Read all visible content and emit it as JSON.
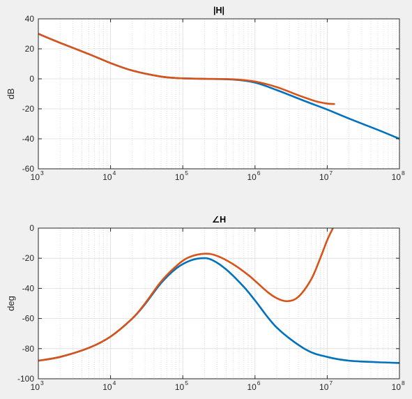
{
  "chart_data": [
    {
      "type": "line",
      "title": "|H|",
      "xlabel": "",
      "ylabel": "dB",
      "xscale": "log",
      "xlim": [
        1000,
        100000000
      ],
      "ylim": [
        -60,
        40
      ],
      "xticks": [
        1000,
        10000,
        100000,
        1000000,
        10000000,
        100000000
      ],
      "xtick_labels": [
        {
          "base": "10",
          "exp": "3"
        },
        {
          "base": "10",
          "exp": "4"
        },
        {
          "base": "10",
          "exp": "5"
        },
        {
          "base": "10",
          "exp": "6"
        },
        {
          "base": "10",
          "exp": "7"
        },
        {
          "base": "10",
          "exp": "8"
        }
      ],
      "yticks": [
        -60,
        -40,
        -20,
        0,
        20,
        40
      ],
      "ytick_labels": [
        "-60",
        "-40",
        "-20",
        "0",
        "20",
        "40"
      ],
      "grid": "major and minor",
      "series": [
        {
          "color": "#0072bd",
          "x": [
            1000,
            2000,
            5000,
            10000,
            20000,
            50000,
            100000,
            200000,
            500000,
            1000000,
            2000000,
            5000000,
            10000000,
            20000000,
            50000000,
            100000000
          ],
          "y": [
            30,
            24,
            16.5,
            10.5,
            5.5,
            1.5,
            0.3,
            0,
            -0.5,
            -2.5,
            -7.5,
            -15,
            -20.5,
            -26.5,
            -34,
            -40
          ]
        },
        {
          "color": "#d95319",
          "x": [
            1000,
            2000,
            5000,
            10000,
            20000,
            50000,
            100000,
            200000,
            500000,
            1000000,
            2000000,
            4000000,
            7000000,
            10000000,
            12500000
          ],
          "y": [
            30,
            24,
            16.5,
            10.5,
            5.5,
            1.5,
            0.3,
            0,
            -0.3,
            -1.8,
            -5.5,
            -11,
            -15,
            -16.5,
            -16.8
          ]
        }
      ]
    },
    {
      "type": "line",
      "title": "∠H",
      "xlabel": "",
      "ylabel": "deg",
      "xscale": "log",
      "xlim": [
        1000,
        100000000
      ],
      "ylim": [
        -100,
        0
      ],
      "xticks": [
        1000,
        10000,
        100000,
        1000000,
        10000000,
        100000000
      ],
      "xtick_labels": [
        {
          "base": "10",
          "exp": "3"
        },
        {
          "base": "10",
          "exp": "4"
        },
        {
          "base": "10",
          "exp": "5"
        },
        {
          "base": "10",
          "exp": "6"
        },
        {
          "base": "10",
          "exp": "7"
        },
        {
          "base": "10",
          "exp": "8"
        }
      ],
      "yticks": [
        -100,
        -80,
        -60,
        -40,
        -20,
        0
      ],
      "ytick_labels": [
        "-100",
        "-80",
        "-60",
        "-40",
        "-20",
        "0"
      ],
      "grid": "major and minor",
      "series": [
        {
          "color": "#0072bd",
          "x": [
            1000,
            2000,
            5000,
            10000,
            20000,
            30000,
            50000,
            80000,
            120000,
            180000,
            250000,
            400000,
            700000,
            1000000,
            2000000,
            5000000,
            10000000,
            20000000,
            50000000,
            100000000
          ],
          "y": [
            -88,
            -85.5,
            -79.5,
            -72,
            -60,
            -50.5,
            -36.5,
            -27,
            -22,
            -20,
            -21,
            -27.5,
            -39,
            -48,
            -66,
            -80.5,
            -85.5,
            -88,
            -89,
            -89.5
          ]
        },
        {
          "color": "#d95319",
          "x": [
            1000,
            2000,
            5000,
            10000,
            20000,
            30000,
            50000,
            80000,
            120000,
            200000,
            300000,
            500000,
            800000,
            1000000,
            1500000,
            2000000,
            2800000,
            4000000,
            6000000,
            8000000,
            10000000,
            12000000
          ],
          "y": [
            -88,
            -85.5,
            -79.5,
            -72,
            -60,
            -50,
            -35.5,
            -25.5,
            -19.5,
            -17,
            -18.5,
            -24,
            -31,
            -35,
            -42.5,
            -46.5,
            -48.5,
            -45.5,
            -34,
            -20,
            -8,
            0
          ]
        }
      ]
    }
  ]
}
